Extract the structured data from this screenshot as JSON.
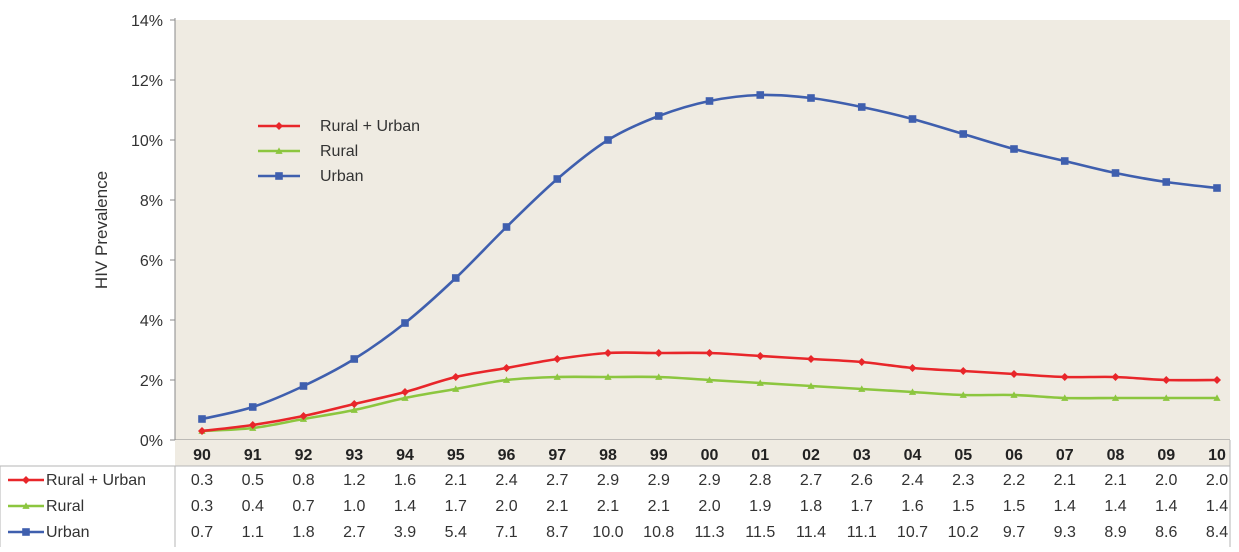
{
  "chart_data": {
    "type": "line",
    "title": "",
    "xlabel": "",
    "ylabel": "HIV Prevalence",
    "ylim": [
      0,
      14
    ],
    "y_ticks": [
      "0%",
      "2%",
      "4%",
      "6%",
      "8%",
      "10%",
      "12%",
      "14%"
    ],
    "y_tick_values": [
      0,
      2,
      4,
      6,
      8,
      10,
      12,
      14
    ],
    "categories": [
      "90",
      "91",
      "92",
      "93",
      "94",
      "95",
      "96",
      "97",
      "98",
      "99",
      "00",
      "01",
      "02",
      "03",
      "04",
      "05",
      "06",
      "07",
      "08",
      "09",
      "10"
    ],
    "grid": false,
    "legend_position": "upper-left",
    "series": [
      {
        "name": "Rural + Urban",
        "color": "#e8262a",
        "marker": "diamond",
        "values": [
          0.3,
          0.5,
          0.8,
          1.2,
          1.6,
          2.1,
          2.4,
          2.7,
          2.9,
          2.9,
          2.9,
          2.8,
          2.7,
          2.6,
          2.4,
          2.3,
          2.2,
          2.1,
          2.1,
          2.0,
          2.0
        ],
        "labels": [
          "0.3",
          "0.5",
          "0.8",
          "1.2",
          "1.6",
          "2.1",
          "2.4",
          "2.7",
          "2.9",
          "2.9",
          "2.9",
          "2.8",
          "2.7",
          "2.6",
          "2.4",
          "2.3",
          "2.2",
          "2.1",
          "2.1",
          "2.0",
          "2.0"
        ]
      },
      {
        "name": "Rural",
        "color": "#8cc63f",
        "marker": "triangle",
        "values": [
          0.3,
          0.4,
          0.7,
          1.0,
          1.4,
          1.7,
          2.0,
          2.1,
          2.1,
          2.1,
          2.0,
          1.9,
          1.8,
          1.7,
          1.6,
          1.5,
          1.5,
          1.4,
          1.4,
          1.4,
          1.4
        ],
        "labels": [
          "0.3",
          "0.4",
          "0.7",
          "1.0",
          "1.4",
          "1.7",
          "2.0",
          "2.1",
          "2.1",
          "2.1",
          "2.0",
          "1.9",
          "1.8",
          "1.7",
          "1.6",
          "1.5",
          "1.5",
          "1.4",
          "1.4",
          "1.4",
          "1.4"
        ]
      },
      {
        "name": "Urban",
        "color": "#3f5fae",
        "marker": "square",
        "values": [
          0.7,
          1.1,
          1.8,
          2.7,
          3.9,
          5.4,
          7.1,
          8.7,
          10.0,
          10.8,
          11.3,
          11.5,
          11.4,
          11.1,
          10.7,
          10.2,
          9.7,
          9.3,
          8.9,
          8.6,
          8.4
        ],
        "labels": [
          "0.7",
          "1.1",
          "1.8",
          "2.7",
          "3.9",
          "5.4",
          "7.1",
          "8.7",
          "10.0",
          "10.8",
          "11.3",
          "11.5",
          "11.4",
          "11.1",
          "10.7",
          "10.2",
          "9.7",
          "9.3",
          "8.9",
          "8.6",
          "8.4"
        ]
      }
    ]
  },
  "colors": {
    "plot_background": "#efebe2",
    "axis": "#8a8a8a",
    "text": "#333333"
  }
}
